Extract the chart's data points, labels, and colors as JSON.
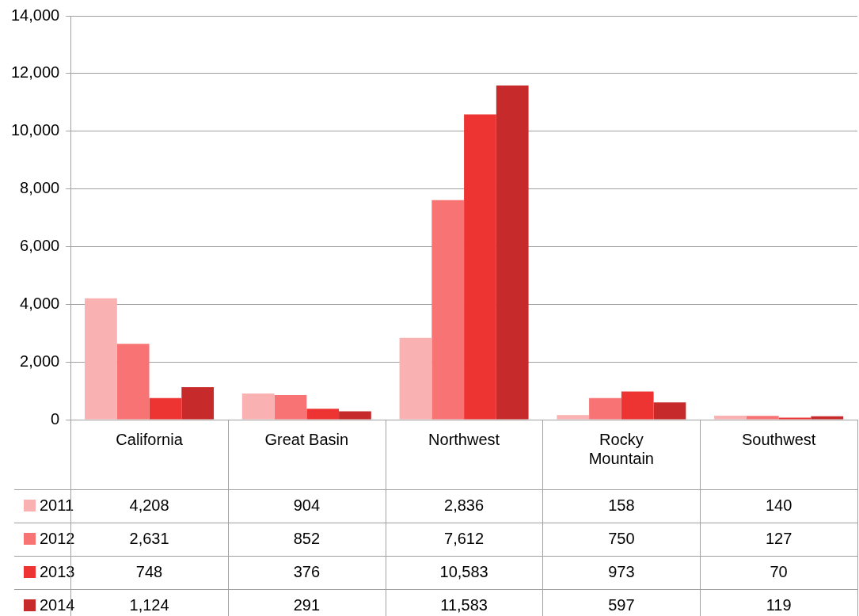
{
  "chart_data": {
    "type": "bar",
    "categories": [
      "California",
      "Great Basin",
      "Northwest",
      "Rocky Mountain",
      "Southwest"
    ],
    "series": [
      {
        "name": "2011",
        "color": "#f9b1b1",
        "values": [
          4208,
          904,
          2836,
          158,
          140
        ],
        "value_labels": [
          "4,208",
          "904",
          "2,836",
          "158",
          "140"
        ]
      },
      {
        "name": "2012",
        "color": "#f87474",
        "values": [
          2631,
          852,
          7612,
          750,
          127
        ],
        "value_labels": [
          "2,631",
          "852",
          "7,612",
          "750",
          "127"
        ]
      },
      {
        "name": "2013",
        "color": "#ee3333",
        "values": [
          748,
          376,
          10583,
          973,
          70
        ],
        "value_labels": [
          "748",
          "376",
          "10,583",
          "973",
          "70"
        ]
      },
      {
        "name": "2014",
        "color": "#c62a2a",
        "values": [
          1124,
          291,
          11583,
          597,
          119
        ],
        "value_labels": [
          "1,124",
          "291",
          "11,583",
          "597",
          "119"
        ]
      }
    ],
    "ylim": [
      0,
      14000
    ],
    "yticks": [
      {
        "value": 0,
        "label": "0"
      },
      {
        "value": 2000,
        "label": "2,000"
      },
      {
        "value": 4000,
        "label": "4,000"
      },
      {
        "value": 6000,
        "label": "6,000"
      },
      {
        "value": 8000,
        "label": "8,000"
      },
      {
        "value": 10000,
        "label": "10,000"
      },
      {
        "value": 12000,
        "label": "12,000"
      },
      {
        "value": 14000,
        "label": "14,000"
      }
    ],
    "grid": "y",
    "legend": "bottom"
  }
}
